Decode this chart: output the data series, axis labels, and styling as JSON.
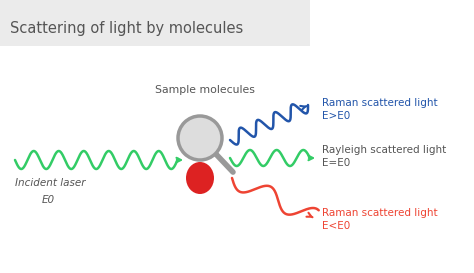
{
  "title": "Scattering of light by molecules",
  "title_fontsize": 10.5,
  "title_bg_color": "#ebebeb",
  "bg_color": "#ffffff",
  "sample_label": "Sample molecules",
  "incident_label": "Incident laser",
  "e0_label": "E0",
  "raman_upper_label": "Raman scattered light",
  "raman_upper_sub": "E>E0",
  "rayleigh_label": "Rayleigh scattered light",
  "rayleigh_sub": "E=E0",
  "raman_lower_label": "Raman scattered light",
  "raman_lower_sub": "E<E0",
  "green_color": "#33cc66",
  "blue_color": "#2255aa",
  "red_color": "#ee4433",
  "text_color": "#555555",
  "molecule_red": "#dd2222",
  "lens_edge": "#999999",
  "lens_face": "#dddddd"
}
